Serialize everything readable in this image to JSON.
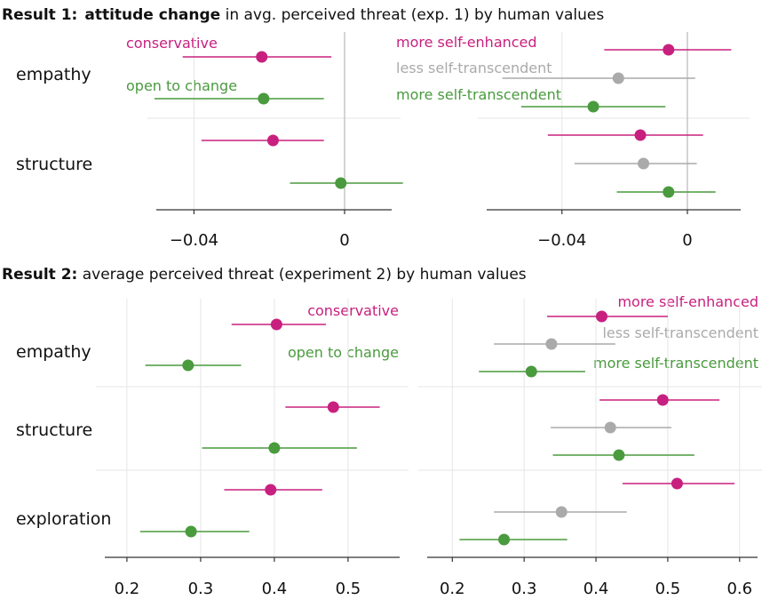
{
  "colors": {
    "magenta": "#c8207f",
    "green": "#4a9a3e",
    "gray": "#aaaaaa",
    "axis": "#333333",
    "grid": "#e6e6e6",
    "zero": "#b8b8b8"
  },
  "chart_data": [
    {
      "type": "scatter",
      "title_prefix": "Result 1:",
      "title_bold": "attitude change",
      "title_rest": " in avg. perceived threat (exp. 1) by human values",
      "rows": [
        "empathy",
        "structure"
      ],
      "panels": [
        {
          "xlim": [
            -0.05,
            0.0125
          ],
          "ticks": [
            -0.04,
            0
          ],
          "tick_labels": [
            "−0.04",
            "0"
          ],
          "zero_line": true,
          "series": [
            {
              "name": "conservative",
              "color": "magenta",
              "points": [
                {
                  "row": "empathy",
                  "value": -0.022,
                  "low": -0.043,
                  "high": -0.0035
                },
                {
                  "row": "structure",
                  "value": -0.019,
                  "low": -0.038,
                  "high": -0.0055
                }
              ]
            },
            {
              "name": "open to change",
              "color": "green",
              "points": [
                {
                  "row": "empathy",
                  "value": -0.0215,
                  "low": -0.0505,
                  "high": -0.0055
                },
                {
                  "row": "structure",
                  "value": -0.001,
                  "low": -0.0145,
                  "high": 0.0155
                }
              ]
            }
          ]
        },
        {
          "xlim": [
            -0.064,
            0.017
          ],
          "ticks": [
            -0.04,
            0
          ],
          "tick_labels": [
            "−0.04",
            "0"
          ],
          "zero_line": true,
          "series": [
            {
              "name": "more self-enhanced",
              "color": "magenta",
              "points": [
                {
                  "row": "empathy",
                  "value": -0.006,
                  "low": -0.0265,
                  "high": 0.014
                },
                {
                  "row": "structure",
                  "value": -0.015,
                  "low": -0.0445,
                  "high": 0.005
                }
              ]
            },
            {
              "name": "less self-transcendent",
              "color": "gray",
              "points": [
                {
                  "row": "empathy",
                  "value": -0.022,
                  "low": -0.059,
                  "high": 0.0025
                },
                {
                  "row": "structure",
                  "value": -0.014,
                  "low": -0.036,
                  "high": 0.003
                }
              ]
            },
            {
              "name": "more self-transcendent",
              "color": "green",
              "points": [
                {
                  "row": "empathy",
                  "value": -0.03,
                  "low": -0.053,
                  "high": -0.007
                },
                {
                  "row": "structure",
                  "value": -0.006,
                  "low": -0.0225,
                  "high": 0.009
                }
              ]
            }
          ]
        }
      ]
    },
    {
      "type": "scatter",
      "title_prefix": "Result 2:",
      "title_bold": "",
      "title_rest": " average perceived threat (experiment 2) by human values",
      "rows": [
        "empathy",
        "structure",
        "exploration"
      ],
      "panels": [
        {
          "xlim": [
            0.17,
            0.57
          ],
          "ticks": [
            0.2,
            0.3,
            0.4,
            0.5
          ],
          "tick_labels": [
            "0.2",
            "0.3",
            "0.4",
            "0.5"
          ],
          "zero_line": false,
          "series": [
            {
              "name": "conservative",
              "color": "magenta",
              "points": [
                {
                  "row": "empathy",
                  "value": 0.403,
                  "low": 0.342,
                  "high": 0.47
                },
                {
                  "row": "structure",
                  "value": 0.48,
                  "low": 0.415,
                  "high": 0.543
                },
                {
                  "row": "exploration",
                  "value": 0.395,
                  "low": 0.332,
                  "high": 0.465
                }
              ]
            },
            {
              "name": "open to change",
              "color": "green",
              "points": [
                {
                  "row": "empathy",
                  "value": 0.283,
                  "low": 0.225,
                  "high": 0.355
                },
                {
                  "row": "structure",
                  "value": 0.4,
                  "low": 0.302,
                  "high": 0.512
                },
                {
                  "row": "exploration",
                  "value": 0.287,
                  "low": 0.218,
                  "high": 0.366
                }
              ]
            }
          ]
        },
        {
          "xlim": [
            0.165,
            0.625
          ],
          "ticks": [
            0.2,
            0.3,
            0.4,
            0.5,
            0.6
          ],
          "tick_labels": [
            "0.2",
            "0.3",
            "0.4",
            "0.5",
            "0.6"
          ],
          "zero_line": false,
          "series": [
            {
              "name": "more self-enhanced",
              "color": "magenta",
              "points": [
                {
                  "row": "empathy",
                  "value": 0.408,
                  "low": 0.332,
                  "high": 0.5
                },
                {
                  "row": "structure",
                  "value": 0.493,
                  "low": 0.405,
                  "high": 0.572
                },
                {
                  "row": "exploration",
                  "value": 0.513,
                  "low": 0.437,
                  "high": 0.593
                }
              ]
            },
            {
              "name": "less self-transcendent",
              "color": "gray",
              "points": [
                {
                  "row": "empathy",
                  "value": 0.338,
                  "low": 0.258,
                  "high": 0.427
                },
                {
                  "row": "structure",
                  "value": 0.42,
                  "low": 0.337,
                  "high": 0.505
                },
                {
                  "row": "exploration",
                  "value": 0.352,
                  "low": 0.258,
                  "high": 0.443
                }
              ]
            },
            {
              "name": "more self-transcendent",
              "color": "green",
              "points": [
                {
                  "row": "empathy",
                  "value": 0.31,
                  "low": 0.237,
                  "high": 0.385
                },
                {
                  "row": "structure",
                  "value": 0.432,
                  "low": 0.34,
                  "high": 0.537
                },
                {
                  "row": "exploration",
                  "value": 0.272,
                  "low": 0.21,
                  "high": 0.36
                }
              ]
            }
          ]
        }
      ]
    }
  ]
}
